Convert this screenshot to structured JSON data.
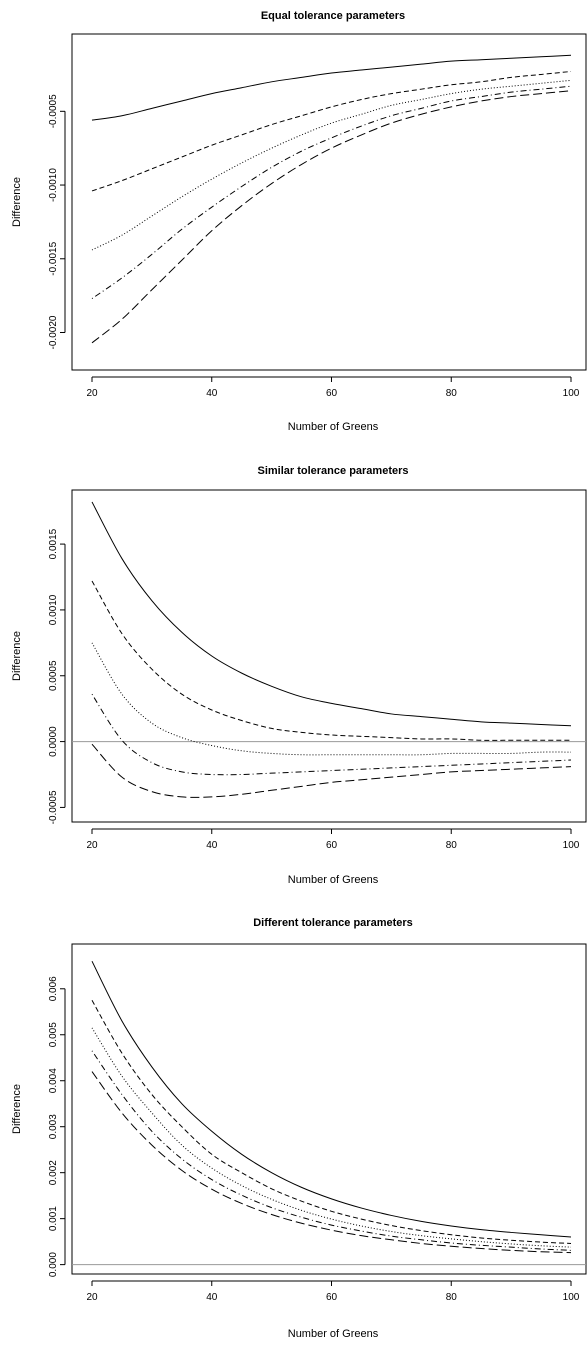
{
  "chart_data": [
    {
      "type": "line",
      "title": "Equal tolerance parameters",
      "xlabel": "Number of Greens",
      "ylabel": "Difference",
      "xlim": [
        20,
        100
      ],
      "ylim": [
        -0.0022,
        -3e-05
      ],
      "xticks": [
        20,
        40,
        60,
        80,
        100
      ],
      "xtick_labels": [
        "20",
        "40",
        "60",
        "80",
        "100"
      ],
      "yticks": [
        -0.0005,
        -0.001,
        -0.0015,
        -0.002
      ],
      "ytick_labels": [
        "-0.0005",
        "-0.0010",
        "-0.0015",
        "-0.0020"
      ],
      "hline": null,
      "x": [
        20,
        25,
        30,
        35,
        40,
        45,
        50,
        55,
        60,
        65,
        70,
        75,
        80,
        85,
        90,
        95,
        100
      ],
      "series": [
        {
          "style": "solid",
          "values": [
            -0.00056,
            -0.00053,
            -0.00048,
            -0.00043,
            -0.00038,
            -0.00034,
            -0.0003,
            -0.00027,
            -0.00024,
            -0.00022,
            -0.0002,
            -0.00018,
            -0.00016,
            -0.00015,
            -0.00014,
            -0.00013,
            -0.00012
          ]
        },
        {
          "style": "dashed",
          "values": [
            -0.00104,
            -0.00097,
            -0.00089,
            -0.00081,
            -0.00073,
            -0.00066,
            -0.00059,
            -0.00053,
            -0.00047,
            -0.00042,
            -0.00038,
            -0.00035,
            -0.00032,
            -0.0003,
            -0.00027,
            -0.00025,
            -0.00023
          ]
        },
        {
          "style": "dotted",
          "values": [
            -0.00144,
            -0.00134,
            -0.00121,
            -0.00108,
            -0.00096,
            -0.00085,
            -0.00075,
            -0.00066,
            -0.00058,
            -0.00052,
            -0.00046,
            -0.00042,
            -0.00038,
            -0.00035,
            -0.00033,
            -0.00031,
            -0.00029
          ]
        },
        {
          "style": "dotdash",
          "values": [
            -0.00177,
            -0.00163,
            -0.00147,
            -0.0013,
            -0.00115,
            -0.00101,
            -0.00088,
            -0.00077,
            -0.00068,
            -0.0006,
            -0.00053,
            -0.00048,
            -0.00043,
            -0.0004,
            -0.00037,
            -0.00035,
            -0.00033
          ]
        },
        {
          "style": "longdash",
          "values": [
            -0.00207,
            -0.00191,
            -0.00171,
            -0.00151,
            -0.00131,
            -0.00114,
            -0.00099,
            -0.00086,
            -0.00075,
            -0.00066,
            -0.00058,
            -0.00052,
            -0.00047,
            -0.00043,
            -0.0004,
            -0.00038,
            -0.00036
          ]
        }
      ]
    },
    {
      "type": "line",
      "title": "Similar tolerance parameters",
      "xlabel": "Number of Greens",
      "ylabel": "Difference",
      "xlim": [
        20,
        100
      ],
      "ylim": [
        -0.00055,
        0.00185
      ],
      "xticks": [
        20,
        40,
        60,
        80,
        100
      ],
      "xtick_labels": [
        "20",
        "40",
        "60",
        "80",
        "100"
      ],
      "yticks": [
        -0.0005,
        0.0,
        0.0005,
        0.001,
        0.0015
      ],
      "ytick_labels": [
        "-0.0005",
        "0.0000",
        "0.0005",
        "0.0010",
        "0.0015"
      ],
      "hline": 0,
      "x": [
        20,
        25,
        30,
        35,
        40,
        45,
        50,
        55,
        60,
        65,
        70,
        75,
        80,
        85,
        90,
        95,
        100
      ],
      "series": [
        {
          "style": "solid",
          "values": [
            0.00182,
            0.00139,
            0.00107,
            0.00083,
            0.00065,
            0.00052,
            0.00042,
            0.00034,
            0.00029,
            0.00025,
            0.00021,
            0.00019,
            0.00017,
            0.00015,
            0.00014,
            0.00013,
            0.00012
          ]
        },
        {
          "style": "dashed",
          "values": [
            0.00122,
            0.00082,
            0.00055,
            0.00036,
            0.00024,
            0.00016,
            0.0001,
            7e-05,
            5e-05,
            4e-05,
            3e-05,
            2e-05,
            2e-05,
            1e-05,
            1e-05,
            1e-05,
            1e-05
          ]
        },
        {
          "style": "dotted",
          "values": [
            0.00075,
            0.00036,
            0.00014,
            3e-05,
            -3e-05,
            -7e-05,
            -9e-05,
            -0.0001,
            -0.0001,
            -0.0001,
            -0.0001,
            -0.0001,
            -9e-05,
            -9e-05,
            -9e-05,
            -8e-05,
            -8e-05
          ]
        },
        {
          "style": "dotdash",
          "values": [
            0.00036,
            1e-05,
            -0.00016,
            -0.00023,
            -0.00025,
            -0.00025,
            -0.00024,
            -0.00023,
            -0.00022,
            -0.00021,
            -0.0002,
            -0.00019,
            -0.00018,
            -0.00017,
            -0.00016,
            -0.00015,
            -0.00014
          ]
        },
        {
          "style": "longdash",
          "values": [
            -2e-05,
            -0.00027,
            -0.00038,
            -0.00042,
            -0.00042,
            -0.0004,
            -0.00037,
            -0.00034,
            -0.00031,
            -0.00029,
            -0.00027,
            -0.00025,
            -0.00023,
            -0.00022,
            -0.00021,
            -0.0002,
            -0.00019
          ]
        }
      ]
    },
    {
      "type": "line",
      "title": "Different tolerance parameters",
      "xlabel": "Number of Greens",
      "ylabel": "Difference",
      "xlim": [
        20,
        100
      ],
      "ylim": [
        -3e-05,
        0.0068
      ],
      "xticks": [
        20,
        40,
        60,
        80,
        100
      ],
      "xtick_labels": [
        "20",
        "40",
        "60",
        "80",
        "100"
      ],
      "yticks": [
        0.0,
        0.001,
        0.002,
        0.003,
        0.004,
        0.005,
        0.006
      ],
      "ytick_labels": [
        "0.000",
        "0.001",
        "0.002",
        "0.003",
        "0.004",
        "0.005",
        "0.006"
      ],
      "hline": 0,
      "x": [
        20,
        25,
        30,
        35,
        40,
        45,
        50,
        55,
        60,
        65,
        70,
        75,
        80,
        85,
        90,
        95,
        100
      ],
      "series": [
        {
          "style": "solid",
          "values": [
            0.0066,
            0.0053,
            0.0043,
            0.0035,
            0.0029,
            0.0024,
            0.002,
            0.00168,
            0.00143,
            0.00123,
            0.00107,
            0.00094,
            0.00084,
            0.00076,
            0.0007,
            0.00065,
            0.0006
          ]
        },
        {
          "style": "dashed",
          "values": [
            0.00575,
            0.0046,
            0.0037,
            0.003,
            0.0024,
            0.002,
            0.00165,
            0.00138,
            0.00116,
            0.00099,
            0.00085,
            0.00074,
            0.00065,
            0.00058,
            0.00053,
            0.00049,
            0.00046
          ]
        },
        {
          "style": "dotted",
          "values": [
            0.00515,
            0.0041,
            0.0033,
            0.0026,
            0.0021,
            0.00172,
            0.00142,
            0.00118,
            0.00099,
            0.00084,
            0.00072,
            0.00063,
            0.00056,
            0.0005,
            0.00045,
            0.00041,
            0.00038
          ]
        },
        {
          "style": "dotdash",
          "values": [
            0.00465,
            0.0037,
            0.0029,
            0.0023,
            0.00185,
            0.00151,
            0.00124,
            0.00103,
            0.00086,
            0.00073,
            0.00062,
            0.00054,
            0.00047,
            0.00042,
            0.00038,
            0.00034,
            0.00031
          ]
        },
        {
          "style": "longdash",
          "values": [
            0.0042,
            0.0033,
            0.0026,
            0.00205,
            0.00164,
            0.00133,
            0.00109,
            0.0009,
            0.00075,
            0.00063,
            0.00054,
            0.00046,
            0.0004,
            0.00035,
            0.00031,
            0.00028,
            0.00026
          ]
        }
      ]
    }
  ]
}
